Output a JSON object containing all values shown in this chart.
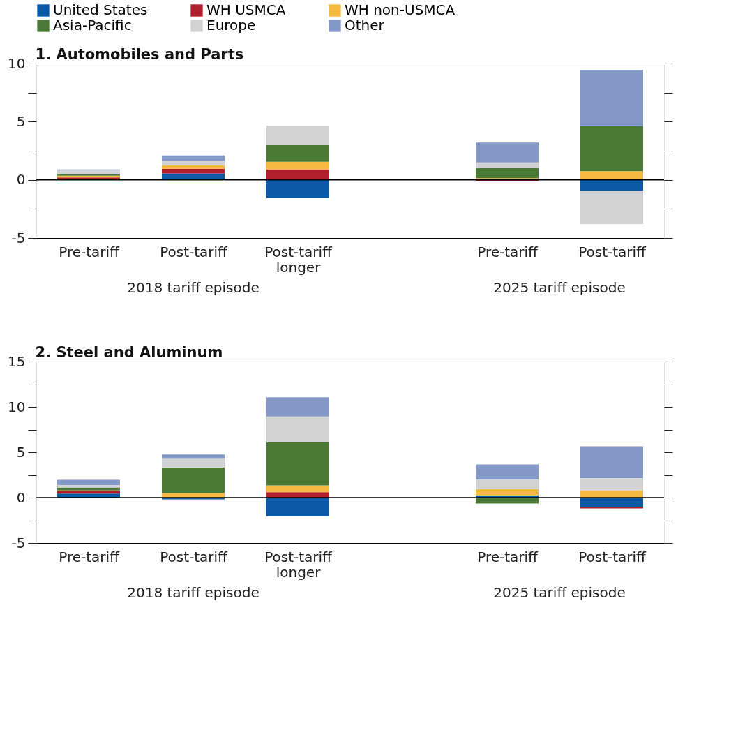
{
  "chart_data": [
    {
      "type": "bar",
      "stacked": true,
      "title": "1. Automobiles and Parts",
      "legend": "top",
      "categories": [
        "Pre-tariff",
        "Post-tariff",
        "Post-tariff\nlonger",
        null,
        "Pre-tariff",
        "Post-tariff"
      ],
      "series": [
        {
          "name": "United States",
          "color": "#0a5aa8",
          "values": [
            0,
            0.55,
            -1.55,
            null,
            0,
            -0.95
          ]
        },
        {
          "name": "WH USMCA",
          "color": "#b21f2d",
          "values": [
            0.2,
            0.4,
            0.9,
            null,
            -0.1,
            null
          ]
        },
        {
          "name": "WH non-USMCA",
          "color": "#f5b942",
          "values": [
            0.15,
            0.3,
            0.65,
            null,
            0.15,
            0.75
          ]
        },
        {
          "name": "Asia-Pacific",
          "color": "#4a7a35",
          "values": [
            0.15,
            0,
            1.45,
            null,
            0.9,
            3.85
          ]
        },
        {
          "name": "Europe",
          "color": "#d0d2d3",
          "values": [
            0.35,
            0.4,
            1.65,
            null,
            0.45,
            -2.85
          ]
        },
        {
          "name": "Other",
          "color": "#8499c8",
          "values": [
            0.05,
            0.45,
            0,
            null,
            1.7,
            4.85
          ]
        }
      ],
      "ylim": [
        -5,
        10
      ],
      "yticks": [
        -5,
        {
          "value": -2.5,
          "label": null
        },
        0,
        {
          "value": 2.5,
          "label": null
        },
        5,
        {
          "value": 7.5,
          "label": null
        },
        10
      ],
      "ref_lines": [
        {
          "axis": "y",
          "value": 0
        }
      ],
      "annotations": [
        "2018 tariff episode",
        "2025 tariff episode"
      ]
    },
    {
      "type": "bar",
      "stacked": true,
      "title": "2. Steel and Aluminum",
      "legend": false,
      "categories": [
        "Pre-tariff",
        "Post-tariff",
        "Post-tariff\nlonger",
        null,
        "Pre-tariff",
        "Post-tariff"
      ],
      "series": [
        {
          "name": "United States",
          "color": "#0a5aa8",
          "values": [
            0.45,
            -0.2,
            -2.05,
            null,
            0.25,
            -1.0
          ]
        },
        {
          "name": "WH USMCA",
          "color": "#b21f2d",
          "values": [
            0.25,
            null,
            0.6,
            null,
            0,
            -0.2
          ]
        },
        {
          "name": "WH non-USMCA",
          "color": "#f5b942",
          "values": [
            0.08,
            0.5,
            0.75,
            null,
            0.7,
            0.8
          ]
        },
        {
          "name": "Asia-Pacific",
          "color": "#4a7a35",
          "values": [
            0.33,
            2.8,
            4.75,
            null,
            -0.65,
            0
          ]
        },
        {
          "name": "Europe",
          "color": "#d0d2d3",
          "values": [
            0.27,
            1.05,
            2.85,
            null,
            1.05,
            1.35
          ]
        },
        {
          "name": "Other",
          "color": "#8499c8",
          "values": [
            0.58,
            0.4,
            2.1,
            null,
            1.65,
            3.5
          ]
        }
      ],
      "ylim": [
        -5,
        15
      ],
      "yticks": [
        -5,
        {
          "value": -2.5,
          "label": null
        },
        0,
        {
          "value": 2.5,
          "label": null
        },
        5,
        {
          "value": 7.5,
          "label": null
        },
        10,
        {
          "value": 12.5,
          "label": null
        },
        15
      ],
      "ref_lines": [
        {
          "axis": "y",
          "value": 0
        }
      ],
      "annotations": [
        "2018 tariff episode",
        "2025 tariff episode"
      ]
    }
  ]
}
